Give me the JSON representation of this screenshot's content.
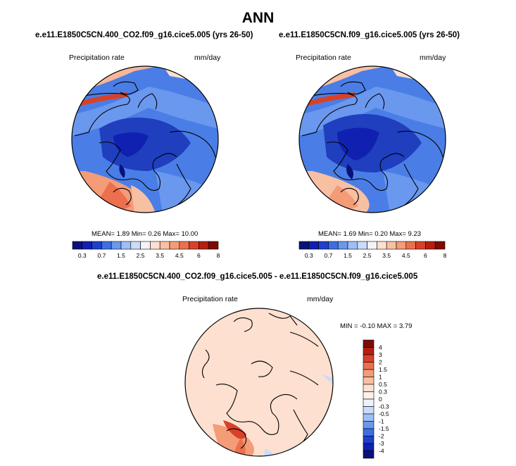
{
  "title": "ANN",
  "colors": {
    "ocean_main": "#3c6fe0",
    "land_dark": "#1f3fbf",
    "coast": "#000000",
    "diff_bg": "#fde0cf"
  },
  "panels": [
    {
      "subtitle": "e.e11.E1850C5CN.400_CO2.f09_g16.cice5.005 (yrs 26-50)",
      "left_label": "Precipitation rate",
      "right_label": "mm/day",
      "stats": "MEAN=  1.89  Min=  0.26  Max=  10.00"
    },
    {
      "subtitle": "e.e11.E1850C5CN.f09_g16.cice5.005 (yrs 26-50)",
      "left_label": "Precipitation rate",
      "right_label": "mm/day",
      "stats": "MEAN=  1.69  Min=  0.20  Max=  9.23"
    }
  ],
  "diff": {
    "subtitle": "e.e11.E1850C5CN.400_CO2.f09_g16.cice5.005 - e.e11.E1850C5CN.f09_g16.cice5.005",
    "left_label": "Precipitation rate",
    "right_label": "mm/day",
    "stats": "MIN =  -0.10  MAX =   3.79"
  },
  "colorbar_abs": {
    "ticks": [
      "0.3",
      "0.7",
      "1.5",
      "2.5",
      "3.5",
      "4.5",
      "6",
      "8"
    ],
    "colors": [
      "#08127a",
      "#1020b0",
      "#1f3fcf",
      "#3c6fe0",
      "#6a98ee",
      "#9dbff5",
      "#cadcf9",
      "#f2f2f7",
      "#fde0cf",
      "#f8c0a3",
      "#f49b78",
      "#ec6f4e",
      "#d84128",
      "#b51f10",
      "#7d0c04"
    ]
  },
  "colorbar_diff": {
    "ticks": [
      "4",
      "3",
      "2",
      "1.5",
      "1",
      "0.5",
      "0.3",
      "0",
      "-0.3",
      "-0.5",
      "-1",
      "-1.5",
      "-2",
      "-3",
      "-4"
    ],
    "colors": [
      "#7d0c04",
      "#b51f10",
      "#d84128",
      "#ec6f4e",
      "#f49b78",
      "#f8c0a3",
      "#fde0cf",
      "#fdf1ea",
      "#eef3fb",
      "#cadcf9",
      "#9dbff5",
      "#6a98ee",
      "#3c6fe0",
      "#1f3fcf",
      "#1020b0",
      "#08127a"
    ]
  }
}
